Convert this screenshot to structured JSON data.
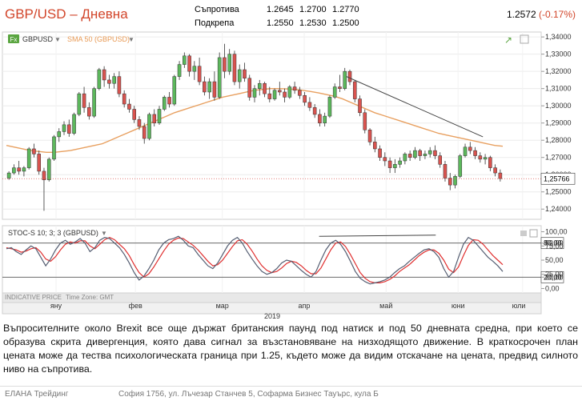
{
  "header": {
    "title": "GBP/USD – Дневна",
    "resistance_label": "Съпротива",
    "resistance_values": [
      "1.2645",
      "1.2700",
      "1.2770"
    ],
    "support_label": "Подкрепа",
    "support_values": [
      "1.2550",
      "1.2530",
      "1.2500"
    ],
    "price": "1.2572",
    "change": "(-0.17%)"
  },
  "colors": {
    "up": "#5cb85c",
    "down": "#d9534f",
    "sma": "#e8a060",
    "stoch_k": "#555e72",
    "stoch_d": "#e03030",
    "trendline": "#444444",
    "accent": "#d2462b"
  },
  "chart_data": {
    "type": "candlestick",
    "symbol": "GBPUSD",
    "indicator_label": "SMA 50 (GBPUSD)",
    "y_ticks": [
      "1,34000",
      "1,33000",
      "1,32000",
      "1,31000",
      "1,30000",
      "1,29000",
      "1,28000",
      "1,27000",
      "1,26000",
      "1,25000",
      "1,24000"
    ],
    "ylim": [
      1.235,
      1.341
    ],
    "last_price_label": "1,25766",
    "last_price": 1.25766,
    "x_month_labels": [
      "яну",
      "фев",
      "мар",
      "апр",
      "май",
      "юни",
      "юли"
    ],
    "x_month_positions": [
      0.1,
      0.26,
      0.435,
      0.6,
      0.765,
      0.91,
      1.04
    ],
    "year_label": "2019",
    "trendline": {
      "from": [
        0.685,
        1.317
      ],
      "to": [
        0.96,
        1.282
      ]
    },
    "candles_ohlc": [
      [
        1.258,
        1.262,
        1.257,
        1.261
      ],
      [
        1.261,
        1.266,
        1.26,
        1.264
      ],
      [
        1.264,
        1.268,
        1.26,
        1.262
      ],
      [
        1.262,
        1.265,
        1.259,
        1.264
      ],
      [
        1.264,
        1.276,
        1.263,
        1.275
      ],
      [
        1.275,
        1.278,
        1.27,
        1.272
      ],
      [
        1.272,
        1.274,
        1.26,
        1.262
      ],
      [
        1.262,
        1.264,
        1.239,
        1.257
      ],
      [
        1.257,
        1.27,
        1.256,
        1.269
      ],
      [
        1.269,
        1.283,
        1.268,
        1.282
      ],
      [
        1.282,
        1.287,
        1.279,
        1.285
      ],
      [
        1.285,
        1.291,
        1.283,
        1.289
      ],
      [
        1.289,
        1.292,
        1.282,
        1.284
      ],
      [
        1.284,
        1.296,
        1.283,
        1.295
      ],
      [
        1.295,
        1.308,
        1.294,
        1.307
      ],
      [
        1.307,
        1.311,
        1.296,
        1.299
      ],
      [
        1.299,
        1.302,
        1.292,
        1.294
      ],
      [
        1.294,
        1.311,
        1.293,
        1.31
      ],
      [
        1.31,
        1.322,
        1.309,
        1.321
      ],
      [
        1.321,
        1.323,
        1.311,
        1.315
      ],
      [
        1.315,
        1.318,
        1.31,
        1.313
      ],
      [
        1.313,
        1.319,
        1.31,
        1.317
      ],
      [
        1.317,
        1.32,
        1.305,
        1.307
      ],
      [
        1.307,
        1.309,
        1.299,
        1.301
      ],
      [
        1.301,
        1.304,
        1.296,
        1.298
      ],
      [
        1.298,
        1.3,
        1.29,
        1.292
      ],
      [
        1.292,
        1.294,
        1.286,
        1.288
      ],
      [
        1.288,
        1.29,
        1.278,
        1.281
      ],
      [
        1.281,
        1.296,
        1.28,
        1.295
      ],
      [
        1.295,
        1.298,
        1.288,
        1.29
      ],
      [
        1.29,
        1.3,
        1.289,
        1.298
      ],
      [
        1.298,
        1.306,
        1.297,
        1.305
      ],
      [
        1.305,
        1.308,
        1.299,
        1.301
      ],
      [
        1.301,
        1.318,
        1.3,
        1.317
      ],
      [
        1.317,
        1.326,
        1.315,
        1.324
      ],
      [
        1.324,
        1.331,
        1.322,
        1.329
      ],
      [
        1.329,
        1.33,
        1.317,
        1.32
      ],
      [
        1.32,
        1.326,
        1.315,
        1.323
      ],
      [
        1.323,
        1.328,
        1.312,
        1.314
      ],
      [
        1.314,
        1.317,
        1.306,
        1.308
      ],
      [
        1.308,
        1.316,
        1.304,
        1.314
      ],
      [
        1.314,
        1.32,
        1.303,
        1.305
      ],
      [
        1.305,
        1.331,
        1.304,
        1.328
      ],
      [
        1.328,
        1.336,
        1.316,
        1.32
      ],
      [
        1.32,
        1.333,
        1.318,
        1.33
      ],
      [
        1.33,
        1.332,
        1.312,
        1.314
      ],
      [
        1.314,
        1.324,
        1.31,
        1.321
      ],
      [
        1.321,
        1.325,
        1.314,
        1.316
      ],
      [
        1.316,
        1.318,
        1.303,
        1.305
      ],
      [
        1.305,
        1.312,
        1.302,
        1.31
      ],
      [
        1.31,
        1.315,
        1.306,
        1.313
      ],
      [
        1.313,
        1.314,
        1.305,
        1.307
      ],
      [
        1.307,
        1.311,
        1.302,
        1.304
      ],
      [
        1.304,
        1.31,
        1.303,
        1.309
      ],
      [
        1.309,
        1.314,
        1.306,
        1.308
      ],
      [
        1.308,
        1.31,
        1.302,
        1.305
      ],
      [
        1.305,
        1.312,
        1.304,
        1.311
      ],
      [
        1.311,
        1.314,
        1.307,
        1.309
      ],
      [
        1.309,
        1.311,
        1.304,
        1.306
      ],
      [
        1.306,
        1.308,
        1.3,
        1.302
      ],
      [
        1.302,
        1.305,
        1.297,
        1.299
      ],
      [
        1.299,
        1.301,
        1.293,
        1.295
      ],
      [
        1.295,
        1.298,
        1.288,
        1.29
      ],
      [
        1.29,
        1.296,
        1.288,
        1.294
      ],
      [
        1.294,
        1.306,
        1.293,
        1.305
      ],
      [
        1.305,
        1.313,
        1.304,
        1.311
      ],
      [
        1.311,
        1.318,
        1.308,
        1.31
      ],
      [
        1.31,
        1.322,
        1.309,
        1.32
      ],
      [
        1.32,
        1.321,
        1.312,
        1.314
      ],
      [
        1.314,
        1.315,
        1.302,
        1.304
      ],
      [
        1.304,
        1.306,
        1.294,
        1.296
      ],
      [
        1.296,
        1.298,
        1.284,
        1.286
      ],
      [
        1.286,
        1.287,
        1.277,
        1.279
      ],
      [
        1.279,
        1.282,
        1.273,
        1.275
      ],
      [
        1.275,
        1.277,
        1.268,
        1.27
      ],
      [
        1.27,
        1.273,
        1.265,
        1.268
      ],
      [
        1.268,
        1.27,
        1.261,
        1.264
      ],
      [
        1.264,
        1.269,
        1.261,
        1.266
      ],
      [
        1.266,
        1.27,
        1.264,
        1.268
      ],
      [
        1.268,
        1.273,
        1.266,
        1.272
      ],
      [
        1.272,
        1.274,
        1.268,
        1.27
      ],
      [
        1.27,
        1.276,
        1.269,
        1.274
      ],
      [
        1.274,
        1.275,
        1.268,
        1.271
      ],
      [
        1.271,
        1.274,
        1.269,
        1.272
      ],
      [
        1.272,
        1.276,
        1.27,
        1.274
      ],
      [
        1.274,
        1.277,
        1.269,
        1.271
      ],
      [
        1.271,
        1.273,
        1.264,
        1.266
      ],
      [
        1.266,
        1.268,
        1.256,
        1.258
      ],
      [
        1.258,
        1.261,
        1.251,
        1.254
      ],
      [
        1.254,
        1.26,
        1.252,
        1.259
      ],
      [
        1.259,
        1.272,
        1.258,
        1.271
      ],
      [
        1.271,
        1.278,
        1.27,
        1.276
      ],
      [
        1.276,
        1.279,
        1.272,
        1.274
      ],
      [
        1.274,
        1.276,
        1.269,
        1.271
      ],
      [
        1.271,
        1.273,
        1.267,
        1.269
      ],
      [
        1.269,
        1.272,
        1.266,
        1.27
      ],
      [
        1.27,
        1.271,
        1.262,
        1.264
      ],
      [
        1.264,
        1.266,
        1.259,
        1.261
      ],
      [
        1.261,
        1.263,
        1.256,
        1.2577
      ]
    ],
    "sma50": [
      1.277,
      1.276,
      1.275,
      1.274,
      1.2735,
      1.273,
      1.273,
      1.2735,
      1.274,
      1.275,
      1.276,
      1.277,
      1.278,
      1.28,
      1.282,
      1.284,
      1.286,
      1.288,
      1.29,
      1.292,
      1.294,
      1.296,
      1.2975,
      1.299,
      1.3005,
      1.302,
      1.3035,
      1.305,
      1.306,
      1.307,
      1.308,
      1.309,
      1.3095,
      1.31,
      1.31,
      1.3098,
      1.3095,
      1.309,
      1.3083,
      1.3075,
      1.3065,
      1.3055,
      1.304,
      1.302,
      1.3,
      1.298,
      1.296,
      1.2945,
      1.293,
      1.2915,
      1.29,
      1.2885,
      1.287,
      1.2855,
      1.284,
      1.283,
      1.282,
      1.281,
      1.28,
      1.279,
      1.278,
      1.277,
      1.2765
    ],
    "sma50_start_index": 38,
    "stochastic": {
      "label": "STOC-S 10; 3; 3 (GBPUSD)",
      "ylim": [
        -5,
        105
      ],
      "y_ticks": [
        "100,00",
        "80,00",
        "75,00",
        "50,00",
        "25,00",
        "20,00",
        "0,00"
      ],
      "levels": [
        80,
        20
      ],
      "levels_labels": [
        "80,00",
        "20,00"
      ],
      "k": [
        70,
        72,
        65,
        60,
        68,
        75,
        70,
        55,
        40,
        52,
        68,
        80,
        85,
        78,
        82,
        88,
        80,
        65,
        72,
        85,
        90,
        88,
        80,
        72,
        60,
        45,
        28,
        15,
        22,
        35,
        50,
        68,
        80,
        86,
        88,
        92,
        85,
        75,
        72,
        60,
        50,
        40,
        35,
        45,
        60,
        75,
        85,
        90,
        80,
        65,
        52,
        40,
        30,
        25,
        28,
        35,
        45,
        50,
        48,
        40,
        32,
        25,
        20,
        30,
        50,
        68,
        80,
        85,
        78,
        65,
        48,
        30,
        18,
        12,
        8,
        10,
        12,
        15,
        20,
        28,
        35,
        40,
        48,
        55,
        62,
        68,
        70,
        65,
        55,
        35,
        20,
        30,
        55,
        78,
        90,
        85,
        75,
        65,
        55,
        48,
        40,
        30
      ],
      "d": [
        72,
        70,
        68,
        64,
        66,
        70,
        72,
        64,
        52,
        48,
        56,
        68,
        78,
        82,
        80,
        84,
        84,
        75,
        70,
        78,
        86,
        90,
        86,
        78,
        70,
        58,
        42,
        28,
        20,
        26,
        38,
        52,
        66,
        78,
        85,
        89,
        88,
        82,
        76,
        68,
        58,
        48,
        40,
        42,
        50,
        62,
        74,
        84,
        86,
        78,
        66,
        52,
        40,
        32,
        28,
        30,
        36,
        44,
        48,
        46,
        40,
        32,
        26,
        26,
        36,
        52,
        68,
        80,
        82,
        74,
        60,
        44,
        28,
        18,
        12,
        10,
        10,
        12,
        16,
        22,
        30,
        36,
        42,
        50,
        58,
        64,
        68,
        68,
        62,
        50,
        34,
        28,
        38,
        58,
        76,
        86,
        85,
        78,
        68,
        58,
        50,
        42
      ],
      "trendline": {
        "from": [
          0.63,
          92
        ],
        "to": [
          0.865,
          94
        ]
      }
    },
    "bottom_left_label": "INDICATIVE PRICE",
    "time_zone_label": "Time Zone: GMT"
  },
  "commentary": "Въпросителните около Brexit все още държат британския паунд под натиск и под 50 дневната средна, при което се образува скрита дивергенция, която дава сигнал за възстановяване на низходящото движение. В краткосрочен план цената може да тества психологическата граница при 1.25, където може да видим отскачане на цената, предвид силното ниво на съпротива.",
  "footer": {
    "company": "ЕЛАНА Трейдинг",
    "address": "София 1756, ул. Лъчезар Станчев 5, Софарма Бизнес Тауърс, кула Б"
  }
}
